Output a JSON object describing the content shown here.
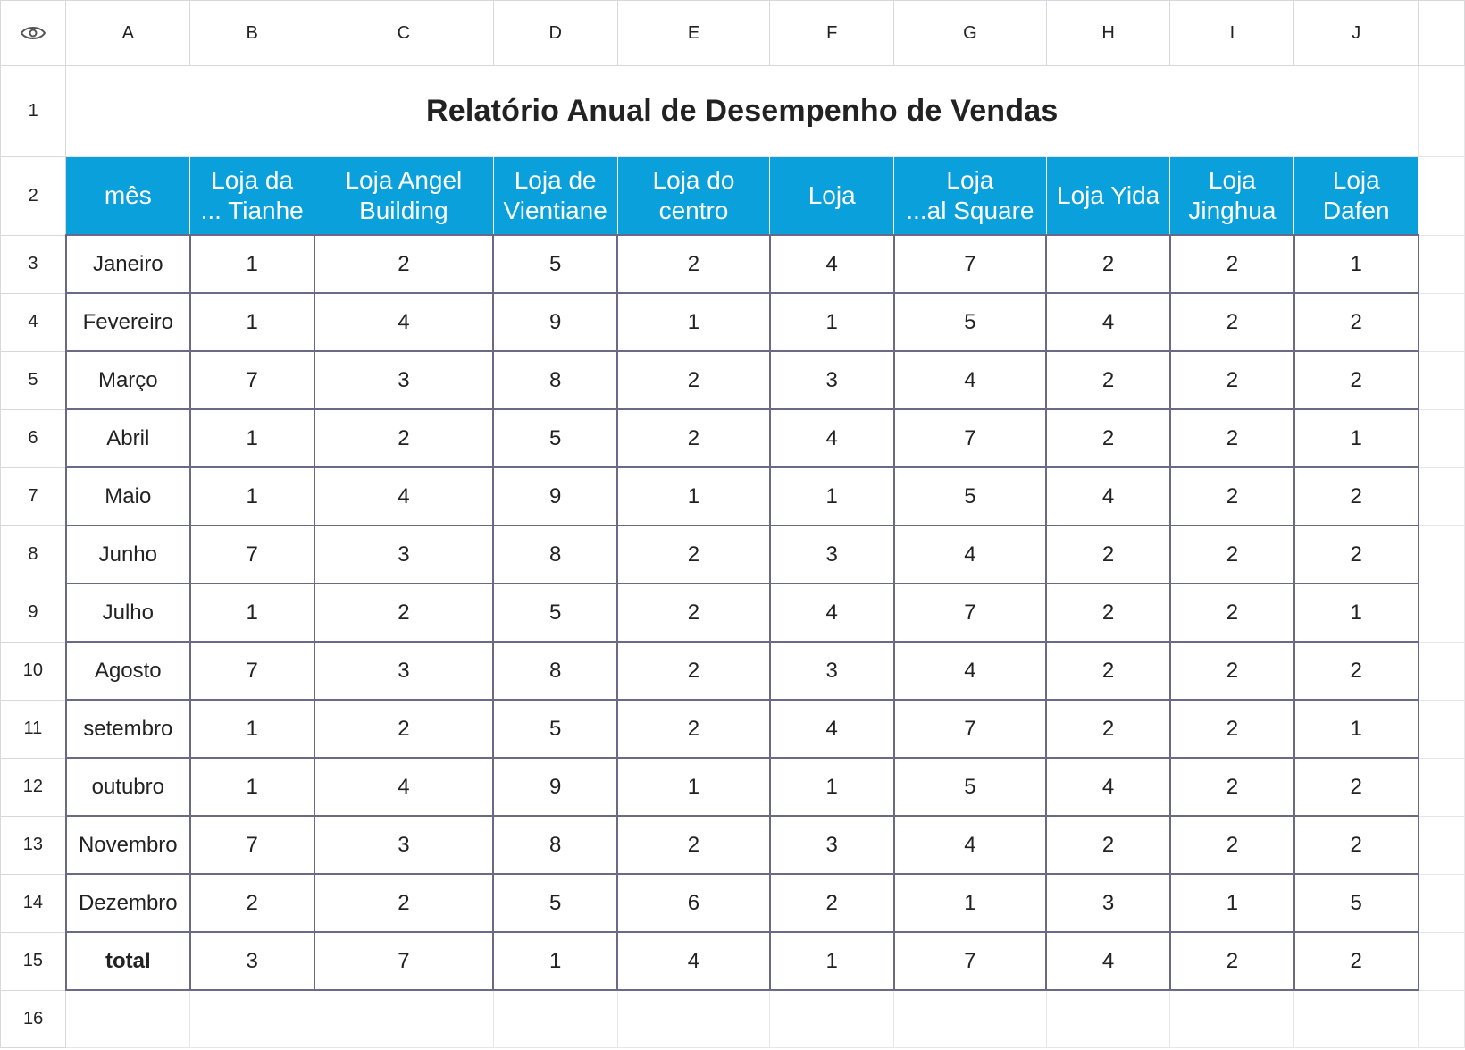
{
  "column_letters": [
    "A",
    "B",
    "C",
    "D",
    "E",
    "F",
    "G",
    "H",
    "I",
    "J"
  ],
  "row_numbers": [
    "1",
    "2",
    "3",
    "4",
    "5",
    "6",
    "7",
    "8",
    "9",
    "10",
    "11",
    "12",
    "13",
    "14",
    "15",
    "16"
  ],
  "title": "Relatório Anual de Desempenho de Vendas",
  "headers": [
    "mês",
    "Loja da\n... Tianhe",
    "Loja Angel\nBuilding",
    "Loja de\nVientiane",
    "Loja do\ncentro",
    "Loja",
    "Loja\n...al Square",
    "Loja Yida",
    "Loja\nJinghua",
    "Loja\nDafen"
  ],
  "rows": [
    [
      "Janeiro",
      "1",
      "2",
      "5",
      "2",
      "4",
      "7",
      "2",
      "2",
      "1"
    ],
    [
      "Fevereiro",
      "1",
      "4",
      "9",
      "1",
      "1",
      "5",
      "4",
      "2",
      "2"
    ],
    [
      "Março",
      "7",
      "3",
      "8",
      "2",
      "3",
      "4",
      "2",
      "2",
      "2"
    ],
    [
      "Abril",
      "1",
      "2",
      "5",
      "2",
      "4",
      "7",
      "2",
      "2",
      "1"
    ],
    [
      "Maio",
      "1",
      "4",
      "9",
      "1",
      "1",
      "5",
      "4",
      "2",
      "2"
    ],
    [
      "Junho",
      "7",
      "3",
      "8",
      "2",
      "3",
      "4",
      "2",
      "2",
      "2"
    ],
    [
      "Julho",
      "1",
      "2",
      "5",
      "2",
      "4",
      "7",
      "2",
      "2",
      "1"
    ],
    [
      "Agosto",
      "7",
      "3",
      "8",
      "2",
      "3",
      "4",
      "2",
      "2",
      "2"
    ],
    [
      "setembro",
      "1",
      "2",
      "5",
      "2",
      "4",
      "7",
      "2",
      "2",
      "1"
    ],
    [
      "outubro",
      "1",
      "4",
      "9",
      "1",
      "1",
      "5",
      "4",
      "2",
      "2"
    ],
    [
      "Novembro",
      "7",
      "3",
      "8",
      "2",
      "3",
      "4",
      "2",
      "2",
      "2"
    ],
    [
      "Dezembro",
      "2",
      "2",
      "5",
      "6",
      "2",
      "1",
      "3",
      "1",
      "5"
    ],
    [
      "total",
      "3",
      "7",
      "1",
      "4",
      "1",
      "7",
      "4",
      "2",
      "2"
    ]
  ],
  "colors": {
    "header_bg": "#0aa0dc",
    "header_text": "#ffffff",
    "table_border": "#6a6a86"
  },
  "icons": {
    "corner": "eye-icon"
  }
}
